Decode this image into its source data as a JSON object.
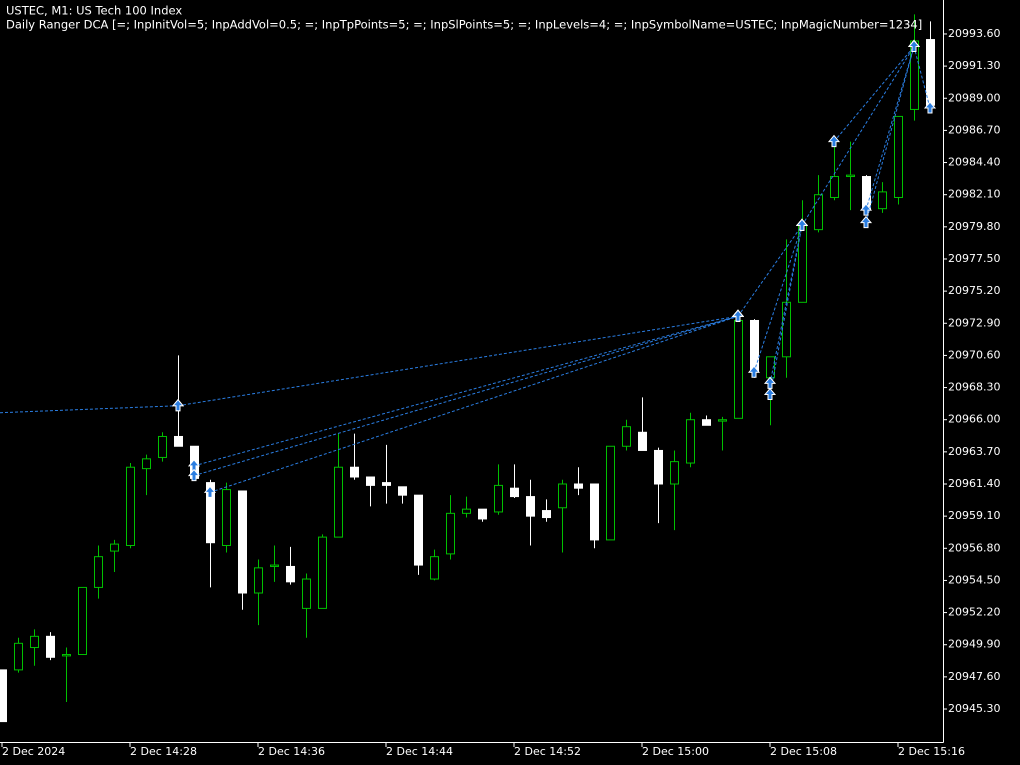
{
  "chart_data": {
    "type": "candlestick",
    "title": "USTEC, M1:  US Tech 100 Index",
    "subtitle": "Daily Ranger DCA [=; InpInitVol=5; InpAddVol=0.5; =; InpTpPoints=5; =; InpSlPoints=5; =; InpLevels=4; =; InpSymbolName=USTEC; InpMagicNumber=1234]",
    "up_color": "#00c000",
    "down_color": "#ffffff",
    "trade_color": "#2a7de1",
    "categories": [
      "2 Dec 2024",
      null,
      null,
      null,
      null,
      null,
      null,
      null,
      "2 Dec 14:28",
      null,
      null,
      null,
      null,
      null,
      null,
      null,
      "2 Dec 14:36",
      null,
      null,
      null,
      null,
      null,
      null,
      null,
      "2 Dec 14:44",
      null,
      null,
      null,
      null,
      null,
      null,
      null,
      "2 Dec 14:52",
      null,
      null,
      null,
      null,
      null,
      null,
      null,
      "2 Dec 15:00",
      null,
      null,
      null,
      null,
      null,
      null,
      null,
      "2 Dec 15:08",
      null,
      null,
      null,
      null,
      null,
      null,
      null,
      "2 Dec 15:16",
      null,
      null
    ],
    "open": [
      20948.1,
      20948.1,
      20949.7,
      20950.5,
      20949.1,
      20949.2,
      20954.0,
      20956.6,
      20957.0,
      20962.5,
      20963.3,
      20964.8,
      20964.1,
      20961.5,
      20957.0,
      20960.9,
      20953.6,
      20955.5,
      20955.5,
      20952.5,
      20952.5,
      20957.6,
      20962.6,
      20961.9,
      20961.5,
      20961.2,
      20960.6,
      20954.6,
      20956.4,
      20959.3,
      20959.6,
      20959.4,
      20961.1,
      20960.5,
      20959.5,
      20959.7,
      20961.4,
      20961.4,
      20957.4,
      20964.1,
      20965.1,
      20963.8,
      20961.4,
      20962.9,
      20966.0,
      20965.9,
      20966.1,
      20973.1,
      20969.0,
      20970.5,
      20974.4,
      20979.6,
      20981.9,
      20983.4,
      20983.4,
      20981.1,
      20981.9,
      20988.2,
      20993.2
    ],
    "high": [
      20948.1,
      20950.4,
      20951.0,
      20950.8,
      20949.7,
      20954.0,
      20957.0,
      20957.4,
      20962.9,
      20963.5,
      20965.1,
      20970.6,
      20964.1,
      20961.7,
      20961.5,
      20960.9,
      20956.0,
      20957.0,
      20956.9,
      20955.0,
      20957.8,
      20965.0,
      20965.0,
      20961.9,
      20964.2,
      20961.2,
      20960.6,
      20956.7,
      20960.6,
      20960.5,
      20959.6,
      20962.8,
      20962.8,
      20961.7,
      20960.3,
      20961.7,
      20962.6,
      20961.4,
      20964.1,
      20966.0,
      20967.6,
      20964.0,
      20963.8,
      20966.5,
      20966.3,
      20966.2,
      20973.7,
      20973.2,
      20970.5,
      20978.9,
      20981.7,
      20983.5,
      20985.9,
      20985.9,
      20983.5,
      20983.0,
      20987.7,
      20995.0,
      20994.5
    ],
    "low": [
      20944.4,
      20947.9,
      20948.4,
      20948.8,
      20945.8,
      20949.2,
      20953.2,
      20955.1,
      20956.8,
      20960.6,
      20963.0,
      20964.1,
      20961.7,
      20954.0,
      20956.5,
      20952.4,
      20951.3,
      20954.4,
      20954.2,
      20950.4,
      20952.5,
      20957.6,
      20961.7,
      20959.8,
      20960.0,
      20960.0,
      20954.9,
      20954.5,
      20956.0,
      20959.0,
      20958.7,
      20959.2,
      20960.4,
      20957.0,
      20958.7,
      20956.5,
      20960.6,
      20956.8,
      20957.4,
      20963.8,
      20963.8,
      20958.6,
      20958.1,
      20962.6,
      20965.6,
      20963.8,
      20966.1,
      20969.0,
      20965.6,
      20969.0,
      20974.4,
      20979.4,
      20981.7,
      20981.0,
      20980.6,
      20980.8,
      20981.4,
      20987.4,
      20988.0
    ],
    "close": [
      20944.4,
      20950.0,
      20950.5,
      20949.0,
      20949.2,
      20954.0,
      20956.2,
      20957.1,
      20962.6,
      20963.2,
      20964.8,
      20964.1,
      20961.8,
      20957.2,
      20961.0,
      20953.6,
      20955.4,
      20955.6,
      20954.4,
      20954.6,
      20957.6,
      20962.6,
      20961.9,
      20961.3,
      20961.3,
      20960.6,
      20955.6,
      20956.2,
      20959.3,
      20959.6,
      20958.9,
      20961.3,
      20960.5,
      20959.1,
      20959.0,
      20961.4,
      20961.1,
      20957.4,
      20964.1,
      20965.5,
      20963.8,
      20961.4,
      20963.0,
      20966.0,
      20965.6,
      20966.0,
      20973.1,
      20969.4,
      20970.5,
      20974.4,
      20979.9,
      20982.1,
      20983.4,
      20983.5,
      20981.0,
      20982.3,
      20987.7,
      20993.1,
      20988.5
    ],
    "trades": [
      {
        "entry_index": null,
        "entry_price": 20966.5,
        "exit_index": 11,
        "exit_price": 20967.0
      },
      {
        "entry_index": 11,
        "entry_price": 20967.0,
        "exit_index": 46,
        "exit_price": 20973.4
      },
      {
        "entry_index": 12,
        "entry_price": 20962.7,
        "exit_index": 46,
        "exit_price": 20973.4
      },
      {
        "entry_index": 12,
        "entry_price": 20962.0,
        "exit_index": 46,
        "exit_price": 20973.4
      },
      {
        "entry_index": 13,
        "entry_price": 20960.8,
        "exit_index": 46,
        "exit_price": 20973.4
      },
      {
        "entry_index": 46,
        "entry_price": 20973.4,
        "exit_index": 50,
        "exit_price": 20979.9
      },
      {
        "entry_index": 47,
        "entry_price": 20969.4,
        "exit_index": 50,
        "exit_price": 20979.9
      },
      {
        "entry_index": 48,
        "entry_price": 20968.6,
        "exit_index": 50,
        "exit_price": 20979.9
      },
      {
        "entry_index": 48,
        "entry_price": 20967.8,
        "exit_index": 50,
        "exit_price": 20979.9
      },
      {
        "entry_index": 50,
        "entry_price": 20979.9,
        "exit_index": 57,
        "exit_price": 20992.7
      },
      {
        "entry_index": 52,
        "entry_price": 20985.9,
        "exit_index": 57,
        "exit_price": 20992.7
      },
      {
        "entry_index": 54,
        "entry_price": 20981.0,
        "exit_index": 57,
        "exit_price": 20992.7
      },
      {
        "entry_index": 54,
        "entry_price": 20980.1,
        "exit_index": 57,
        "exit_price": 20992.7
      },
      {
        "entry_index": 57,
        "entry_price": 20992.7,
        "exit_index": 58,
        "exit_price": 20988.3
      }
    ],
    "ylim": [
      20942.94,
      20996.03
    ],
    "yticks": [
      {
        "value": 20993.6,
        "label": "20993.60"
      },
      {
        "value": 20991.3,
        "label": "20991.30"
      },
      {
        "value": 20989.0,
        "label": "20989.00"
      },
      {
        "value": 20986.7,
        "label": "20986.70"
      },
      {
        "value": 20984.4,
        "label": "20984.40"
      },
      {
        "value": 20982.1,
        "label": "20982.10"
      },
      {
        "value": 20979.8,
        "label": "20979.80"
      },
      {
        "value": 20977.5,
        "label": "20977.50"
      },
      {
        "value": 20975.2,
        "label": "20975.20"
      },
      {
        "value": 20972.9,
        "label": "20972.90"
      },
      {
        "value": 20970.6,
        "label": "20970.60"
      },
      {
        "value": 20968.3,
        "label": "20968.30"
      },
      {
        "value": 20966.0,
        "label": "20966.00"
      },
      {
        "value": 20963.7,
        "label": "20963.70"
      },
      {
        "value": 20961.4,
        "label": "20961.40"
      },
      {
        "value": 20959.1,
        "label": "20959.10"
      },
      {
        "value": 20956.8,
        "label": "20956.80"
      },
      {
        "value": 20954.5,
        "label": "20954.50"
      },
      {
        "value": 20952.2,
        "label": "20952.20"
      },
      {
        "value": 20949.9,
        "label": "20949.90"
      },
      {
        "value": 20947.6,
        "label": "20947.60"
      },
      {
        "value": 20945.3,
        "label": "20945.30"
      }
    ],
    "grid": false
  }
}
